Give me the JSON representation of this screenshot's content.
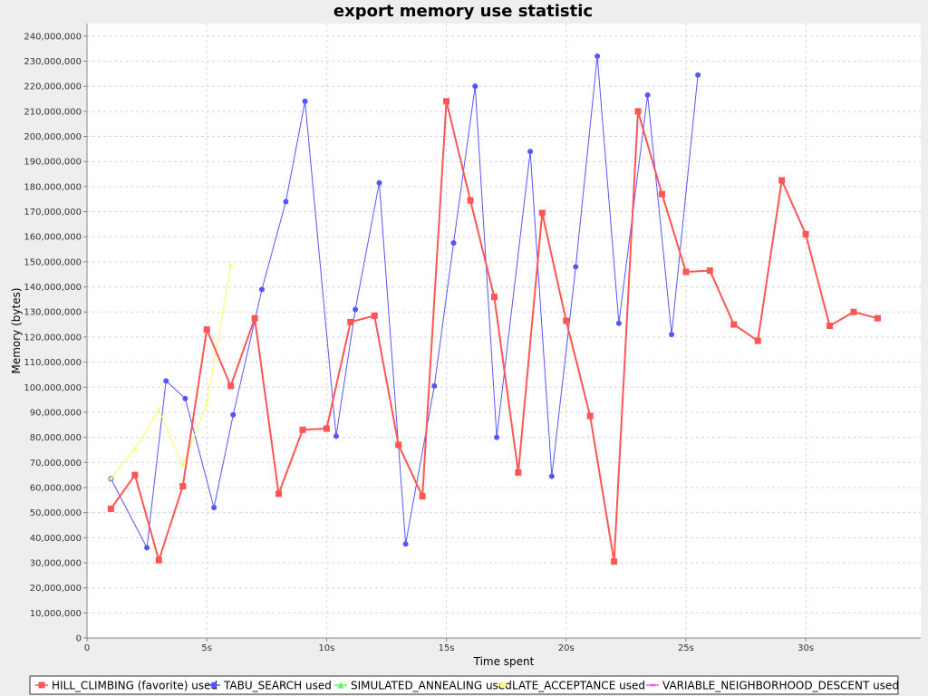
{
  "chart_data": {
    "type": "line",
    "title": "export memory use statistic",
    "xlabel": "Time spent",
    "ylabel": "Memory (bytes)",
    "xlim": [
      0,
      34.8
    ],
    "ylim": [
      0,
      245000000
    ],
    "x_ticks": [
      0,
      5,
      10,
      15,
      20,
      25,
      30
    ],
    "x_tick_labels": [
      "0",
      "5s",
      "10s",
      "15s",
      "20s",
      "25s",
      "30s"
    ],
    "y_ticks": [
      0,
      10000000,
      20000000,
      30000000,
      40000000,
      50000000,
      60000000,
      70000000,
      80000000,
      90000000,
      100000000,
      110000000,
      120000000,
      130000000,
      140000000,
      150000000,
      160000000,
      170000000,
      180000000,
      190000000,
      200000000,
      210000000,
      220000000,
      230000000,
      240000000
    ],
    "y_tick_labels": [
      "0",
      "10,000,000",
      "20,000,000",
      "30,000,000",
      "40,000,000",
      "50,000,000",
      "60,000,000",
      "70,000,000",
      "80,000,000",
      "90,000,000",
      "100,000,000",
      "110,000,000",
      "120,000,000",
      "130,000,000",
      "140,000,000",
      "150,000,000",
      "160,000,000",
      "170,000,000",
      "180,000,000",
      "190,000,000",
      "200,000,000",
      "210,000,000",
      "220,000,000",
      "230,000,000",
      "240,000,000"
    ],
    "grid": true,
    "legend_position": "bottom",
    "series": [
      {
        "name": "HILL_CLIMBING (favorite) used",
        "color": "#ff5555",
        "marker": "square",
        "line_width": 2,
        "points": [
          [
            1,
            51500000
          ],
          [
            2,
            65000000
          ],
          [
            3,
            31000000
          ],
          [
            4,
            60500000
          ],
          [
            5,
            123000000
          ],
          [
            6,
            100500000
          ],
          [
            7,
            127500000
          ],
          [
            8,
            57500000
          ],
          [
            9,
            83000000
          ],
          [
            10,
            83500000
          ],
          [
            11,
            126000000
          ],
          [
            12,
            128500000
          ],
          [
            13,
            77000000
          ],
          [
            14,
            56500000
          ],
          [
            15,
            214000000
          ],
          [
            16,
            174500000
          ],
          [
            17,
            136000000
          ],
          [
            18,
            66000000
          ],
          [
            19,
            169500000
          ],
          [
            20,
            126500000
          ],
          [
            21,
            88500000
          ],
          [
            22,
            30500000
          ],
          [
            23,
            210000000
          ],
          [
            24,
            177000000
          ],
          [
            25,
            146000000
          ],
          [
            26,
            146500000
          ],
          [
            27,
            125000000
          ],
          [
            28,
            118500000
          ],
          [
            29,
            182500000
          ],
          [
            30,
            161000000
          ],
          [
            31,
            124500000
          ],
          [
            32,
            130000000
          ],
          [
            33,
            127500000
          ]
        ]
      },
      {
        "name": "TABU_SEARCH used",
        "color": "#5555ff",
        "marker": "circle",
        "line_width": 1,
        "points": [
          [
            1,
            63500000
          ],
          [
            2.5,
            36000000
          ],
          [
            3.3,
            102500000
          ],
          [
            4.1,
            95500000
          ],
          [
            5.3,
            52000000
          ],
          [
            6.1,
            89000000
          ],
          [
            7.3,
            139000000
          ],
          [
            8.3,
            174000000
          ],
          [
            9.1,
            214000000
          ],
          [
            10.4,
            80500000
          ],
          [
            11.2,
            131000000
          ],
          [
            12.2,
            181500000
          ],
          [
            13.3,
            37500000
          ],
          [
            14.5,
            100500000
          ],
          [
            15.3,
            157500000
          ],
          [
            16.2,
            220000000
          ],
          [
            17.1,
            80000000
          ],
          [
            18.5,
            194000000
          ],
          [
            19.4,
            64500000
          ],
          [
            20.4,
            148000000
          ],
          [
            21.3,
            232000000
          ],
          [
            22.2,
            125500000
          ],
          [
            23.4,
            216500000
          ],
          [
            24.4,
            121000000
          ],
          [
            25.5,
            224500000
          ]
        ]
      },
      {
        "name": "SIMULATED_ANNEALING used",
        "color": "#55ff55",
        "marker": "triangle",
        "line_width": 1,
        "points": []
      },
      {
        "name": "LATE_ACCEPTANCE used",
        "color": "#ffff55",
        "marker": "diamond",
        "line_width": 1,
        "points": [
          [
            1,
            63500000
          ],
          [
            2,
            75500000
          ],
          [
            3,
            91000000
          ],
          [
            4,
            69000000
          ],
          [
            5,
            93000000
          ],
          [
            6,
            148500000
          ]
        ]
      },
      {
        "name": "VARIABLE_NEIGHBORHOOD_DESCENT used",
        "color": "#ff55ff",
        "marker": "dash",
        "line_width": 1,
        "points": []
      }
    ]
  }
}
